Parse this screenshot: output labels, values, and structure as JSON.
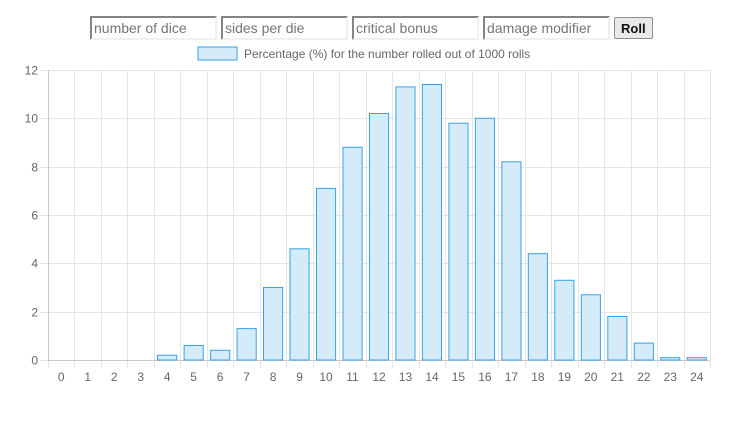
{
  "controls": {
    "dice_placeholder": "number of dice",
    "sides_placeholder": "sides per die",
    "critical_placeholder": "critical bonus",
    "modifier_placeholder": "damage modifier",
    "roll_label": "Roll"
  },
  "chart_data": {
    "type": "bar",
    "title": "",
    "xlabel": "",
    "ylabel": "",
    "legend": {
      "placement": "top",
      "label": "Percentage (%) for the number rolled out of 1000 rolls"
    },
    "grid": true,
    "categories": [
      "0",
      "1",
      "2",
      "3",
      "4",
      "5",
      "6",
      "7",
      "8",
      "9",
      "10",
      "11",
      "12",
      "13",
      "14",
      "15",
      "16",
      "17",
      "18",
      "19",
      "20",
      "21",
      "22",
      "23",
      "24"
    ],
    "values": [
      0,
      0,
      0,
      0,
      0.2,
      0.6,
      0.4,
      1.3,
      3.0,
      4.6,
      7.1,
      8.8,
      10.2,
      11.3,
      11.4,
      9.8,
      10.0,
      8.2,
      4.4,
      3.3,
      2.7,
      1.8,
      0.7,
      0.1,
      0.1
    ],
    "ylim": [
      0,
      12
    ],
    "yticks": [
      "0",
      "2",
      "4",
      "6",
      "8",
      "10",
      "12"
    ],
    "colors": {
      "bar_fill": "#d6ebf8",
      "bar_stroke": "#36a2eb",
      "grid": "#e5e5e5"
    }
  }
}
